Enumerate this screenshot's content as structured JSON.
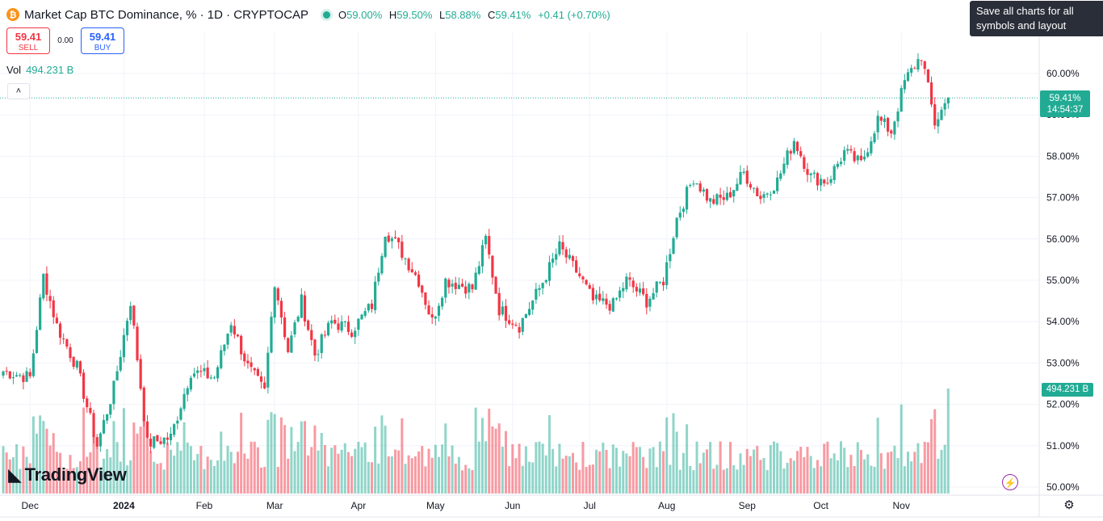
{
  "header": {
    "logo_glyph": "₿",
    "title": "Market Cap BTC Dominance, % · 1D · CRYPTOCAP",
    "ohlc": [
      {
        "k": "O",
        "v": "59.00%"
      },
      {
        "k": "H",
        "v": "59.50%"
      },
      {
        "k": "L",
        "v": "58.88%"
      },
      {
        "k": "C",
        "v": "59.41%"
      }
    ],
    "change": "+0.41 (+0.70%)"
  },
  "trade": {
    "sell_price": "59.41",
    "sell_label": "SELL",
    "spread": "0.00",
    "buy_price": "59.41",
    "buy_label": "BUY"
  },
  "volume_legend": {
    "label": "Vol",
    "value": "494.231 B"
  },
  "collapse_icon": "˄",
  "tooltip": "Save all charts for all symbols and layout",
  "price_tag": {
    "price": "59.41%",
    "countdown": "14:54:37"
  },
  "volume_tag": "494.231 B",
  "brand": {
    "mark": "◣",
    "name": "TradingView"
  },
  "flash_icon": "⚡",
  "settings_icon": "⚙",
  "colors": {
    "up": "#22ab94",
    "down": "#f23645",
    "grid": "#f0f3fa"
  },
  "chart_data": {
    "type": "candlestick",
    "title": "Market Cap BTC Dominance, % · 1D · CRYPTOCAP",
    "y_ticks": [
      "50.00%",
      "51.00%",
      "52.00%",
      "53.00%",
      "54.00%",
      "55.00%",
      "56.00%",
      "57.00%",
      "58.00%",
      "59.00%",
      "60.00%"
    ],
    "y_range": [
      49.9,
      61.7
    ],
    "x_ticks": [
      "Dec",
      "2024",
      "Feb",
      "Mar",
      "Apr",
      "May",
      "Jun",
      "Jul",
      "Aug",
      "Sep",
      "Oct",
      "Nov"
    ],
    "x_tick_index": [
      8,
      36,
      60,
      81,
      106,
      129,
      152,
      175,
      198,
      222,
      244,
      268
    ],
    "last_close": 59.41,
    "last_volume": "494.231 B",
    "bar_count": 283,
    "anchor_closes": [
      [
        0,
        52.8
      ],
      [
        8,
        52.65
      ],
      [
        12,
        55.1
      ],
      [
        16,
        53.9
      ],
      [
        22,
        52.9
      ],
      [
        28,
        51.0
      ],
      [
        33,
        52.4
      ],
      [
        38,
        54.5
      ],
      [
        43,
        51.05
      ],
      [
        50,
        51.2
      ],
      [
        56,
        52.8
      ],
      [
        63,
        52.65
      ],
      [
        68,
        54.0
      ],
      [
        73,
        52.9
      ],
      [
        78,
        52.3
      ],
      [
        81,
        55.0
      ],
      [
        85,
        53.3
      ],
      [
        89,
        54.5
      ],
      [
        93,
        53.2
      ],
      [
        98,
        54.0
      ],
      [
        104,
        53.8
      ],
      [
        110,
        54.4
      ],
      [
        114,
        56.2
      ],
      [
        118,
        55.8
      ],
      [
        124,
        55.0
      ],
      [
        128,
        54.0
      ],
      [
        132,
        55.0
      ],
      [
        140,
        54.8
      ],
      [
        144,
        56.0
      ],
      [
        148,
        54.3
      ],
      [
        154,
        53.9
      ],
      [
        160,
        54.8
      ],
      [
        166,
        55.8
      ],
      [
        172,
        55.1
      ],
      [
        176,
        54.5
      ],
      [
        182,
        54.4
      ],
      [
        186,
        55.0
      ],
      [
        192,
        54.5
      ],
      [
        197,
        55.0
      ],
      [
        201,
        56.5
      ],
      [
        206,
        57.5
      ],
      [
        211,
        56.9
      ],
      [
        216,
        57.0
      ],
      [
        221,
        57.6
      ],
      [
        226,
        57.0
      ],
      [
        231,
        57.4
      ],
      [
        236,
        58.4
      ],
      [
        241,
        57.5
      ],
      [
        246,
        57.4
      ],
      [
        251,
        58.1
      ],
      [
        256,
        57.8
      ],
      [
        261,
        58.9
      ],
      [
        265,
        58.6
      ],
      [
        269,
        59.8
      ],
      [
        274,
        60.45
      ],
      [
        278,
        58.8
      ],
      [
        282,
        59.41
      ]
    ]
  }
}
